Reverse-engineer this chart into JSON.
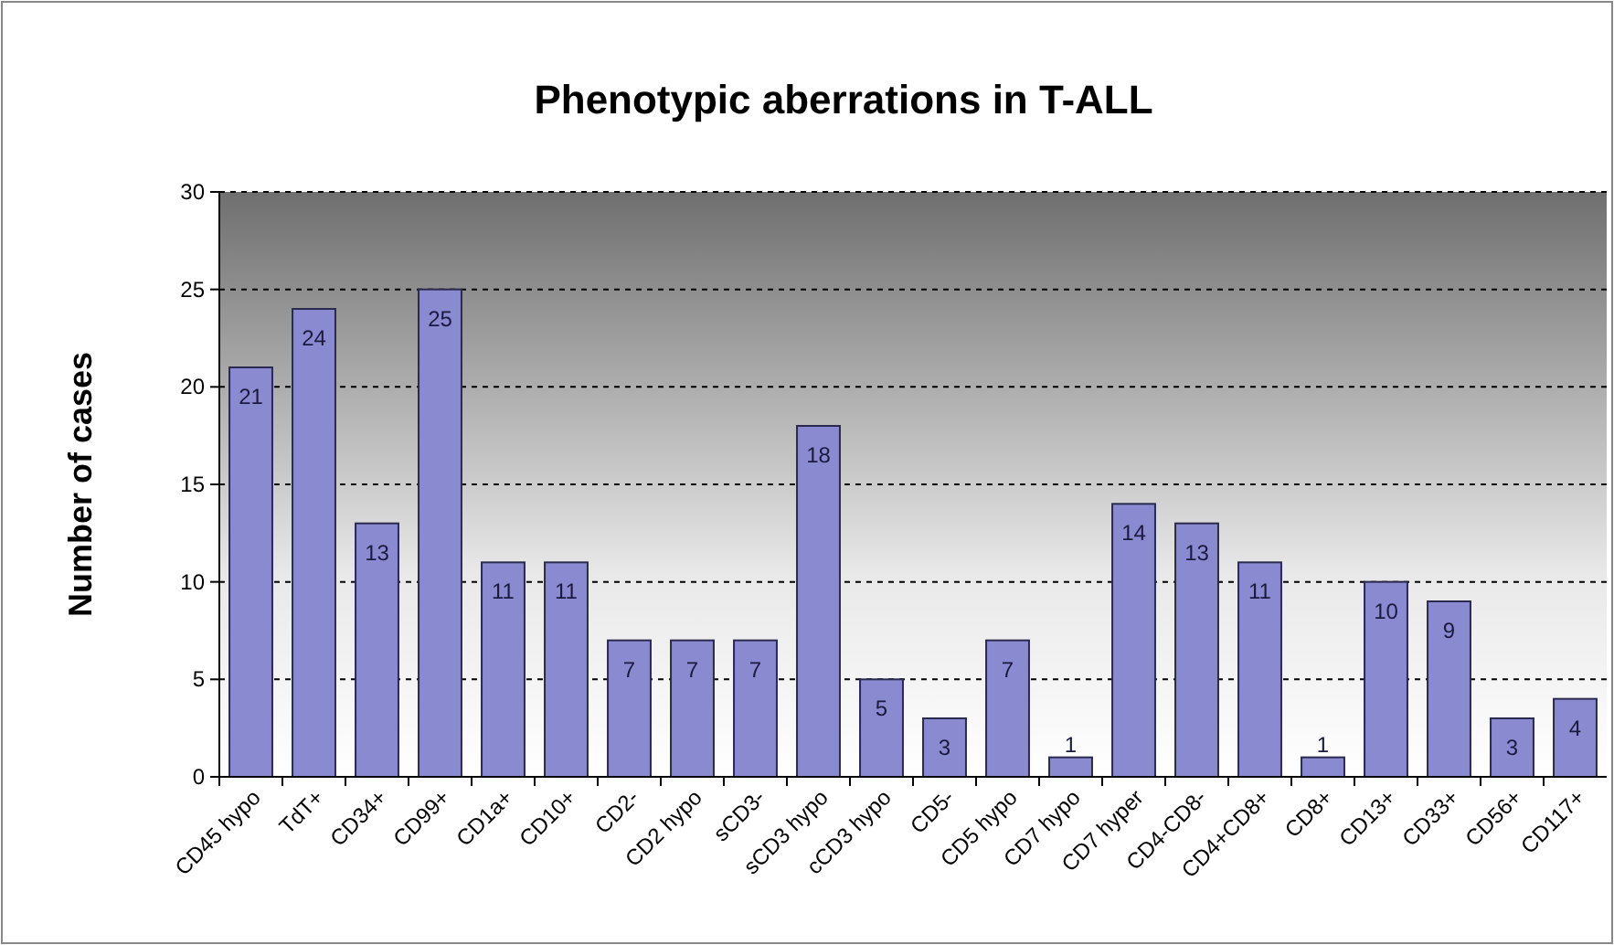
{
  "chart_data": {
    "type": "bar",
    "title": "Phenotypic aberrations in T-ALL",
    "ylabel": "Number of cases",
    "categories": [
      "CD45 hypo",
      "TdT+",
      "CD34+",
      "CD99+",
      "CD1a+",
      "CD10+",
      "CD2-",
      "CD2 hypo",
      "sCD3-",
      "sCD3 hypo",
      "cCD3 hypo",
      "CD5-",
      "CD5 hypo",
      "CD7 hypo",
      "CD7 hyper",
      "CD4-CD8-",
      "CD4+CD8+",
      "CD8+",
      "CD13+",
      "CD33+",
      "CD56+",
      "CD117+"
    ],
    "values": [
      21,
      24,
      13,
      25,
      11,
      11,
      7,
      7,
      7,
      18,
      5,
      3,
      7,
      1,
      14,
      13,
      11,
      1,
      10,
      9,
      3,
      4
    ],
    "color": "#8a8ad0",
    "ylim": [
      0,
      30
    ],
    "yticks": [
      0,
      5,
      10,
      15,
      20,
      25,
      30
    ],
    "grid": "y",
    "data_labels": true
  }
}
